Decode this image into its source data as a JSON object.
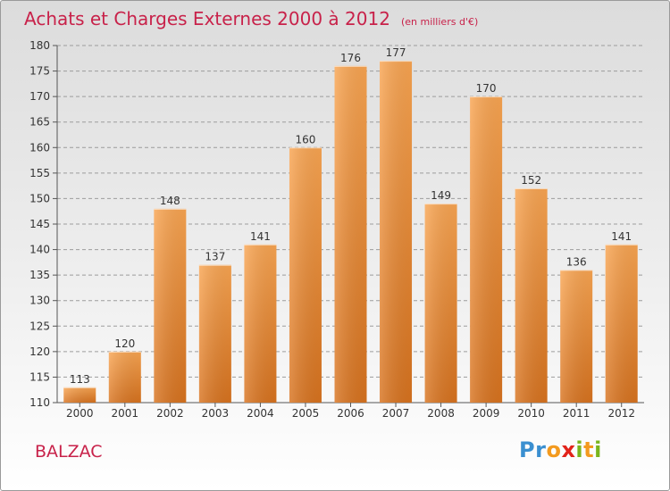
{
  "title": "Achats et Charges Externes 2000 à 2012",
  "subtitle": "(en milliers d'€)",
  "commune": "BALZAC",
  "logo": {
    "letters": [
      "P",
      "r",
      "o",
      "x",
      "i",
      "t",
      "i"
    ],
    "colors": [
      "#3a8fd0",
      "#3a8fd0",
      "#f39a1e",
      "#e2231a",
      "#7ab51d",
      "#f39a1e",
      "#7ab51d"
    ]
  },
  "colors": {
    "bar_light": "#f9a552",
    "bar_dark": "#d8731f",
    "grid": "#9c9c9c",
    "text": "#333333",
    "accent": "#c8224a"
  },
  "chart_data": {
    "type": "bar",
    "title": "Achats et Charges Externes 2000 à 2012",
    "subtitle": "(en milliers d'€)",
    "categories": [
      "2000",
      "2001",
      "2002",
      "2003",
      "2004",
      "2005",
      "2006",
      "2007",
      "2008",
      "2009",
      "2010",
      "2011",
      "2012"
    ],
    "values": [
      113,
      120,
      148,
      137,
      141,
      160,
      176,
      177,
      149,
      170,
      152,
      136,
      141
    ],
    "ylim": [
      110,
      180
    ],
    "yticks": [
      110,
      115,
      120,
      125,
      130,
      135,
      140,
      145,
      150,
      155,
      160,
      165,
      170,
      175,
      180
    ],
    "grid": true,
    "legend": false
  }
}
